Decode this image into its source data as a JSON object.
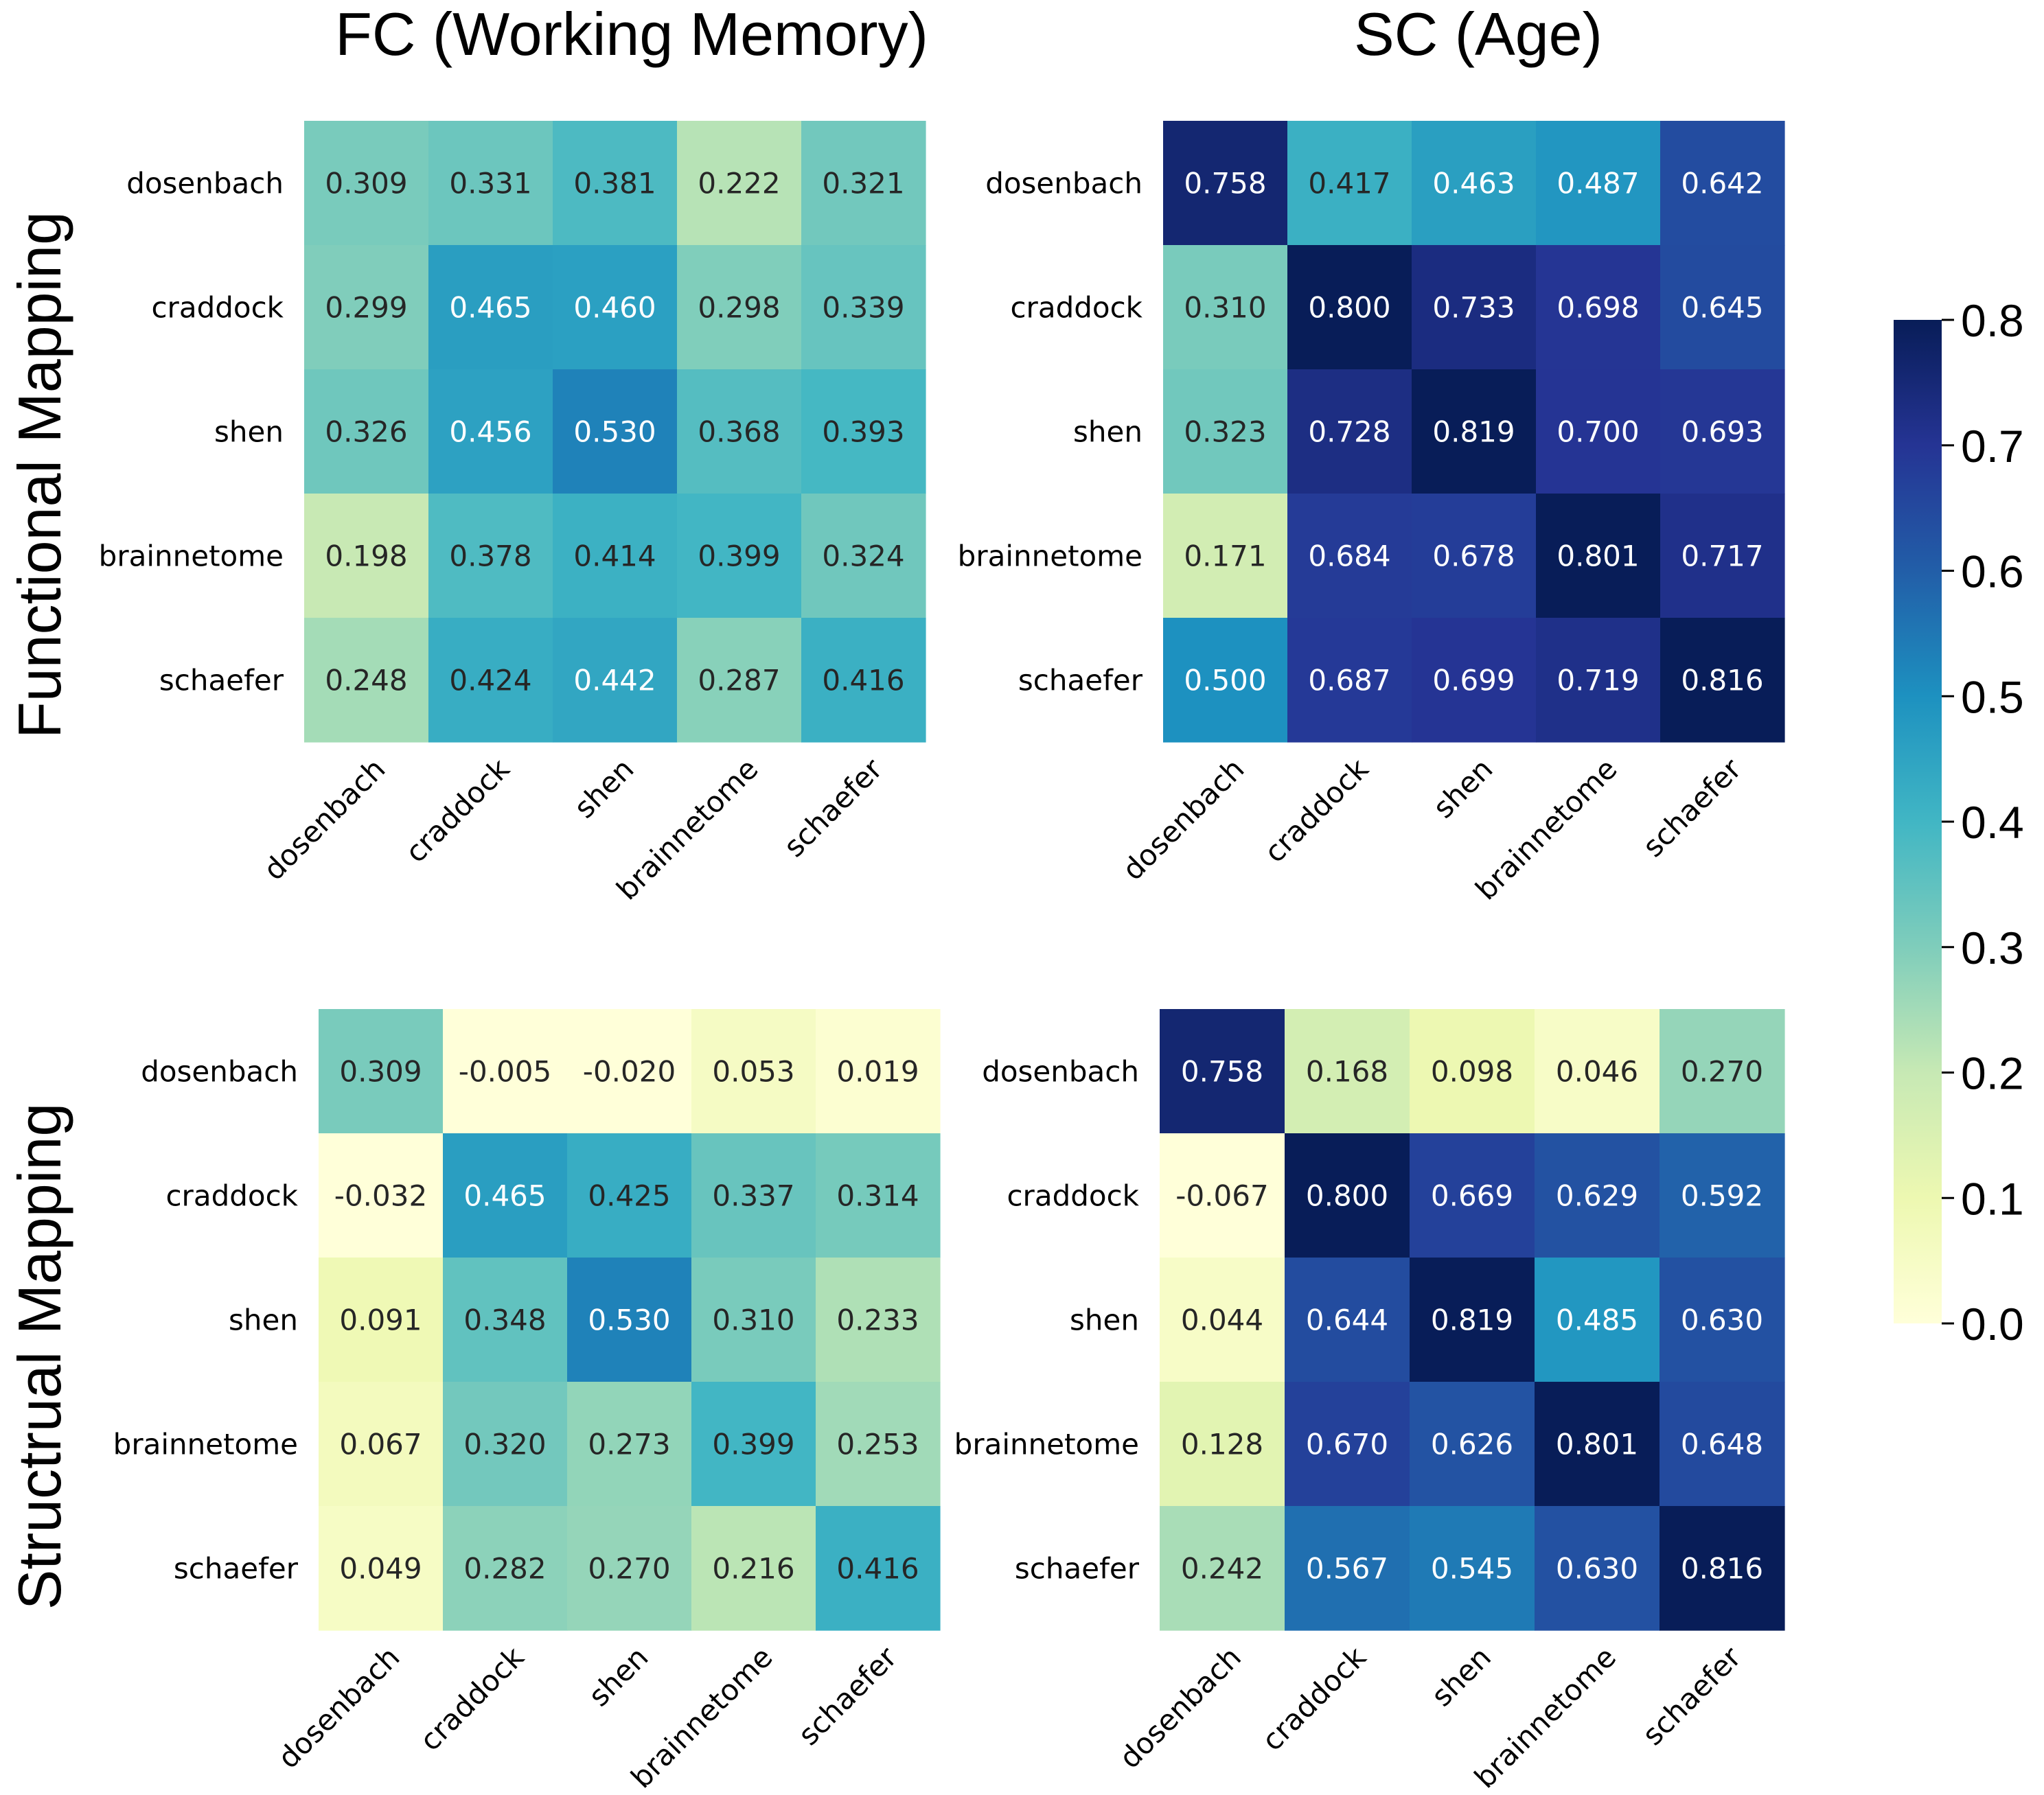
{
  "chart_data": {
    "type": "heatmap",
    "column_titles": [
      "FC (Working Memory)",
      "SC (Age)"
    ],
    "row_titles": [
      "Functional Mapping",
      "Structrual Mapping"
    ],
    "labels": [
      "dosenbach",
      "craddock",
      "shen",
      "brainnetome",
      "schaefer"
    ],
    "colormap": "YlGnBu",
    "colorbar": {
      "vmin": 0.0,
      "vmax": 0.8,
      "ticks": [
        0.0,
        0.1,
        0.2,
        0.3,
        0.4,
        0.5,
        0.6,
        0.7,
        0.8
      ],
      "tick_labels": [
        "0.0",
        "0.1",
        "0.2",
        "0.3",
        "0.4",
        "0.5",
        "0.6",
        "0.7",
        "0.8"
      ]
    },
    "panels": [
      {
        "row_title": "Functional Mapping",
        "column_title": "FC (Working Memory)",
        "rows": [
          "dosenbach",
          "craddock",
          "shen",
          "brainnetome",
          "schaefer"
        ],
        "columns": [
          "dosenbach",
          "craddock",
          "shen",
          "brainnetome",
          "schaefer"
        ],
        "values": [
          [
            "0.309",
            "0.331",
            "0.381",
            "0.222",
            "0.321"
          ],
          [
            "0.299",
            "0.465",
            "0.460",
            "0.298",
            "0.339"
          ],
          [
            "0.326",
            "0.456",
            "0.530",
            "0.368",
            "0.393"
          ],
          [
            "0.198",
            "0.378",
            "0.414",
            "0.399",
            "0.324"
          ],
          [
            "0.248",
            "0.424",
            "0.442",
            "0.287",
            "0.416"
          ]
        ]
      },
      {
        "row_title": "Functional Mapping",
        "column_title": "SC (Age)",
        "rows": [
          "dosenbach",
          "craddock",
          "shen",
          "brainnetome",
          "schaefer"
        ],
        "columns": [
          "dosenbach",
          "craddock",
          "shen",
          "brainnetome",
          "schaefer"
        ],
        "values": [
          [
            "0.758",
            "0.417",
            "0.463",
            "0.487",
            "0.642"
          ],
          [
            "0.310",
            "0.800",
            "0.733",
            "0.698",
            "0.645"
          ],
          [
            "0.323",
            "0.728",
            "0.819",
            "0.700",
            "0.693"
          ],
          [
            "0.171",
            "0.684",
            "0.678",
            "0.801",
            "0.717"
          ],
          [
            "0.500",
            "0.687",
            "0.699",
            "0.719",
            "0.816"
          ]
        ]
      },
      {
        "row_title": "Structrual Mapping",
        "column_title": "FC (Working Memory)",
        "rows": [
          "dosenbach",
          "craddock",
          "shen",
          "brainnetome",
          "schaefer"
        ],
        "columns": [
          "dosenbach",
          "craddock",
          "shen",
          "brainnetome",
          "schaefer"
        ],
        "values": [
          [
            "0.309",
            "-0.005",
            "-0.020",
            "0.053",
            "0.019"
          ],
          [
            "-0.032",
            "0.465",
            "0.425",
            "0.337",
            "0.314"
          ],
          [
            "0.091",
            "0.348",
            "0.530",
            "0.310",
            "0.233"
          ],
          [
            "0.067",
            "0.320",
            "0.273",
            "0.399",
            "0.253"
          ],
          [
            "0.049",
            "0.282",
            "0.270",
            "0.216",
            "0.416"
          ]
        ]
      },
      {
        "row_title": "Structrual Mapping",
        "column_title": "SC (Age)",
        "rows": [
          "dosenbach",
          "craddock",
          "shen",
          "brainnetome",
          "schaefer"
        ],
        "columns": [
          "dosenbach",
          "craddock",
          "shen",
          "brainnetome",
          "schaefer"
        ],
        "values": [
          [
            "0.758",
            "0.168",
            "0.098",
            "0.046",
            "0.270"
          ],
          [
            "-0.067",
            "0.800",
            "0.669",
            "0.629",
            "0.592"
          ],
          [
            "0.044",
            "0.644",
            "0.819",
            "0.485",
            "0.630"
          ],
          [
            "0.128",
            "0.670",
            "0.626",
            "0.801",
            "0.648"
          ],
          [
            "0.242",
            "0.567",
            "0.545",
            "0.630",
            "0.816"
          ]
        ]
      }
    ]
  }
}
